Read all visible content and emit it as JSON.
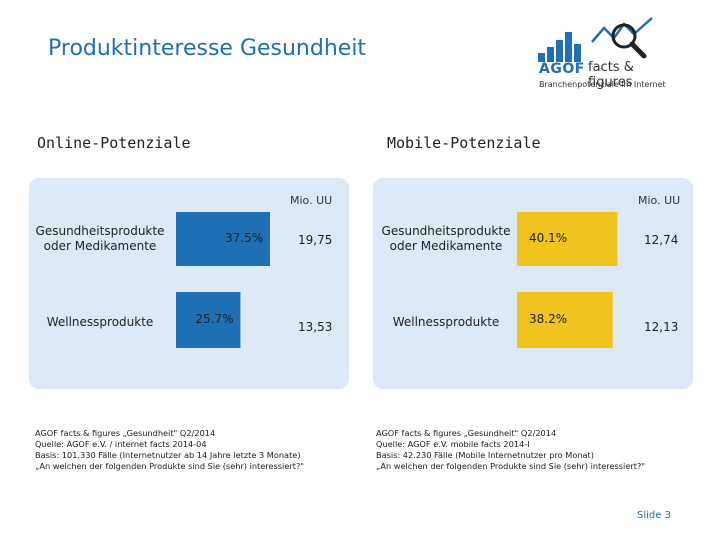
{
  "page": {
    "title": "Produktinteresse Gesundheit",
    "slide": "Slide 3"
  },
  "logo": {
    "word": "AGOF",
    "facts": "facts & figures",
    "tagline": "Branchenpotenziale im Internet",
    "color": "#1f6fb5"
  },
  "online": {
    "heading": "Online-Potenziale",
    "unit": "Mio. UU",
    "source": [
      "AGOF facts & figures „Gesundheit\" Q2/2014",
      "Quelle: AGOF e.V. / internet facts 2014-04",
      "Basis: 101.330 Fälle (Internetnutzer ab 14 Jahre letzte 3 Monate)",
      "„An welchen der folgenden Produkte sind Sie (sehr) interessiert?\""
    ]
  },
  "mobile": {
    "heading": "Mobile-Potenziale",
    "unit": "Mio. UU",
    "source": [
      "AGOF facts & figures „Gesundheit\" Q2/2014",
      "Quelle: AGOF e.V. mobile facts 2014-I",
      "Basis: 42.230 Fälle (Mobile Internetnutzer pro Monat)",
      "„An welchen der folgenden Produkte sind Sie (sehr) interessiert?\""
    ]
  },
  "chart_data": [
    {
      "type": "bar",
      "orientation": "horizontal",
      "categories": [
        "Gesundheitsprodukte oder Medikamente",
        "Wellnessprodukte"
      ],
      "values": [
        37.5,
        25.7
      ],
      "value_labels": [
        "37.5%",
        "25.7%"
      ],
      "absolute_values": [
        "19,75",
        "13,53"
      ],
      "color": "#1f6fb5"
    },
    {
      "type": "bar",
      "orientation": "horizontal",
      "categories": [
        "Gesundheitsprodukte oder Medikamente",
        "Wellnessprodukte"
      ],
      "values": [
        40.1,
        38.2
      ],
      "value_labels": [
        "40.1%",
        "38.2%"
      ],
      "absolute_values": [
        "12,74",
        "12,13"
      ],
      "color": "#f1c31e"
    }
  ]
}
